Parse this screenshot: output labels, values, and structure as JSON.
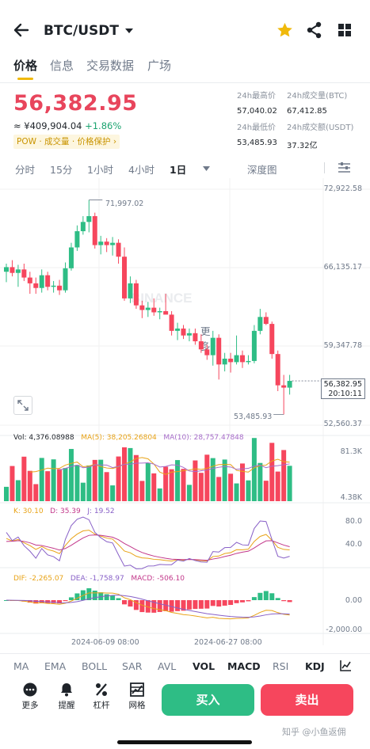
{
  "header": {
    "back_icon": "arrow-left-icon",
    "title": "BTC/USDT",
    "star_color": "#f0b90b"
  },
  "tabs": [
    "价格",
    "信息",
    "交易数据",
    "广场"
  ],
  "price": {
    "last": "56,382.95",
    "cny": "≈ ¥409,904.04",
    "change": "+1.86%",
    "tags": "POW · 成交量 · 价格保护 ›"
  },
  "stats": {
    "high_label": "24h最高价",
    "high": "57,040.02",
    "vol_btc_label": "24h成交量(BTC)",
    "vol_btc": "67,412.85",
    "low_label": "24h最低价",
    "low": "53,485.93",
    "vol_usdt_label": "24h成交额(USDT)",
    "vol_usdt": "37.32亿"
  },
  "intervals": {
    "items": [
      "分时",
      "15分",
      "1小时",
      "4小时",
      "1日",
      "更多"
    ],
    "active": "1日",
    "depth": "深度图"
  },
  "chart": {
    "ticks": [
      "72,922.58",
      "66,135.17",
      "59,347.78",
      "52,560.37"
    ],
    "max_label": "71,997.02",
    "min_label": "53,485.93",
    "last_price": "56,382.95",
    "last_time": "20:10:11",
    "watermark": "BINANCE",
    "dates": [
      "2024-06-09 08:00",
      "2024-06-27 08:00"
    ]
  },
  "volume": {
    "vol": "Vol: 4,376.08988",
    "ma5": "MA(5): 38,205.26804",
    "ma10": "MA(10): 28,757.47848",
    "top": "81.3K",
    "bottom": "4.38K"
  },
  "kdj": {
    "k": "K: 30.10",
    "d": "D: 35.39",
    "j": "J: 19.52",
    "tick1": "80.0",
    "tick2": "40.0"
  },
  "macd": {
    "dif": "DIF: -2,265.07",
    "dea": "DEA: -1,758.97",
    "macd": "MACD: -506.10",
    "tick1": "0.00",
    "tick2": "-2,000.00"
  },
  "indicators": [
    "MA",
    "EMA",
    "BOLL",
    "SAR",
    "AVL",
    "VOL",
    "MACD",
    "RSI",
    "KDJ"
  ],
  "actions": [
    {
      "label": "更多",
      "icon": "more-icon"
    },
    {
      "label": "提醒",
      "icon": "bell-icon"
    },
    {
      "label": "杠杆",
      "icon": "leverage-icon"
    },
    {
      "label": "网格",
      "icon": "grid-icon"
    }
  ],
  "buy": "买入",
  "sell": "卖出",
  "watermark_credit": "知乎 @小鱼返佣",
  "colors": {
    "up": "#2ebd85",
    "down": "#f6465d",
    "accent": "#f0b90b"
  },
  "chart_data": {
    "type": "candlestick",
    "ylim": [
      52560.37,
      72922.58
    ],
    "candles": [
      [
        65800,
        66500,
        64900,
        66200
      ],
      [
        66200,
        66800,
        65400,
        65700
      ],
      [
        65700,
        66400,
        64500,
        66000
      ],
      [
        66000,
        66500,
        65000,
        65300
      ],
      [
        65300,
        65800,
        63900,
        64800
      ],
      [
        64800,
        65300,
        63900,
        64400
      ],
      [
        64400,
        66000,
        64000,
        65500
      ],
      [
        65500,
        65800,
        64200,
        64500
      ],
      [
        64500,
        65000,
        64000,
        64600
      ],
      [
        64600,
        65100,
        63800,
        64200
      ],
      [
        64200,
        66600,
        64000,
        66100
      ],
      [
        66100,
        68300,
        65900,
        67900
      ],
      [
        67900,
        69800,
        67600,
        69300
      ],
      [
        69300,
        70600,
        69000,
        70100
      ],
      [
        70100,
        71997,
        69200,
        70600
      ],
      [
        70600,
        70900,
        67800,
        68100
      ],
      [
        68100,
        68900,
        67300,
        68400
      ],
      [
        68400,
        68700,
        67500,
        68100
      ],
      [
        68100,
        68800,
        67200,
        68300
      ],
      [
        68300,
        68600,
        66500,
        67100
      ],
      [
        67100,
        67900,
        63300,
        63500
      ],
      [
        63500,
        65400,
        63100,
        64800
      ],
      [
        64800,
        65100,
        62600,
        62900
      ],
      [
        62900,
        63300,
        61800,
        62500
      ],
      [
        62500,
        63200,
        61900,
        62700
      ],
      [
        62700,
        63500,
        62000,
        62300
      ],
      [
        62300,
        62700,
        61700,
        62400
      ],
      [
        62400,
        63900,
        62200,
        62100
      ],
      [
        62100,
        62400,
        60300,
        60700
      ],
      [
        60700,
        61400,
        59900,
        60900
      ],
      [
        60900,
        61200,
        60000,
        60300
      ],
      [
        60300,
        60900,
        59800,
        60500
      ],
      [
        60500,
        60900,
        59500,
        59800
      ],
      [
        59800,
        60400,
        58800,
        59100
      ],
      [
        59100,
        59500,
        58200,
        58600
      ],
      [
        58600,
        60700,
        57700,
        60100
      ],
      [
        60100,
        60400,
        56500,
        57800
      ],
      [
        57800,
        58800,
        57200,
        58300
      ],
      [
        58300,
        58800,
        57100,
        58000
      ],
      [
        58000,
        60300,
        57800,
        58600
      ],
      [
        58600,
        59000,
        57500,
        58000
      ],
      [
        58000,
        58600,
        57800,
        58100
      ],
      [
        58100,
        61200,
        57900,
        60700
      ],
      [
        60700,
        62600,
        60400,
        61900
      ],
      [
        61900,
        62300,
        61200,
        61300
      ],
      [
        61300,
        61500,
        58300,
        58700
      ],
      [
        58700,
        59000,
        55500,
        56000
      ],
      [
        56000,
        56900,
        53485.93,
        55800
      ],
      [
        55800,
        56900,
        55200,
        56382.95
      ]
    ]
  }
}
